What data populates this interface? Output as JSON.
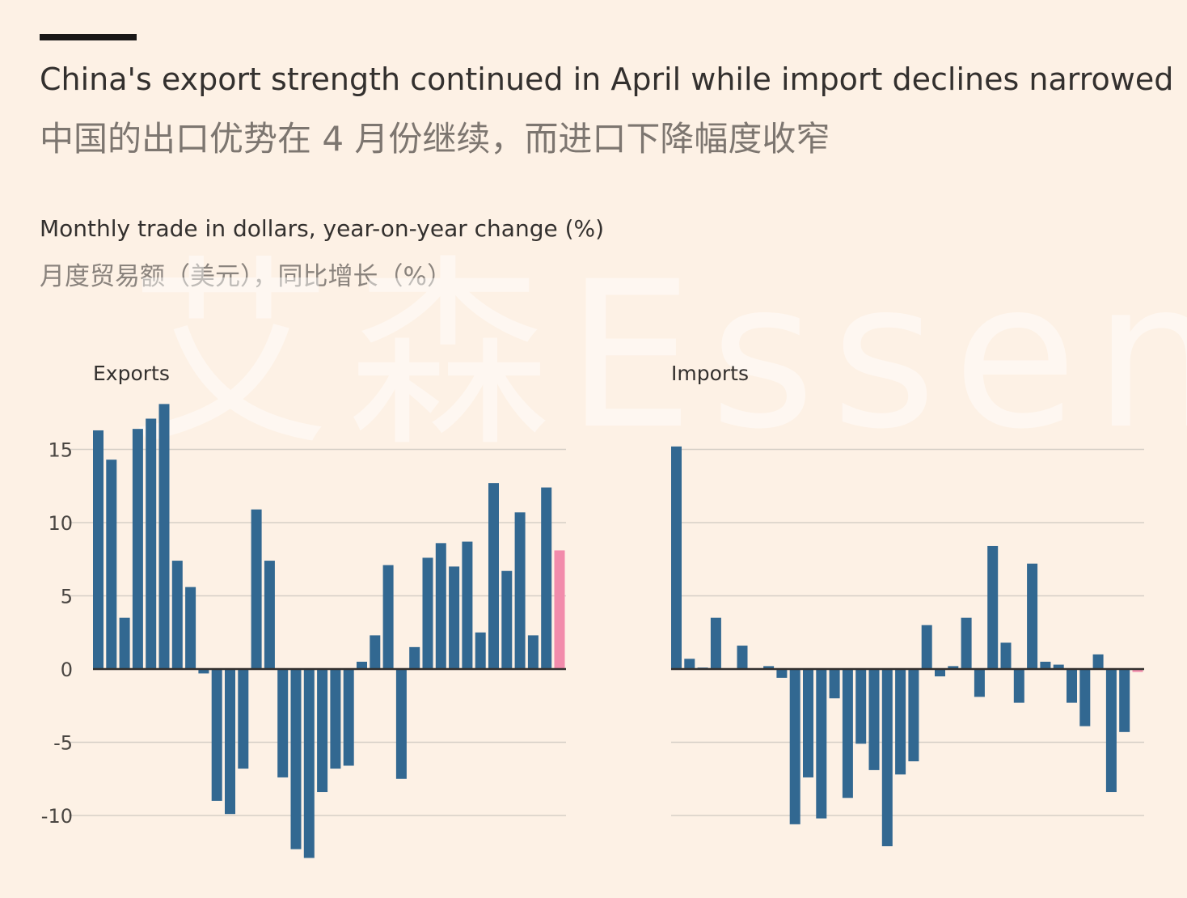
{
  "header": {
    "title": "China's export strength continued in April while import declines narrowed",
    "title_zh": "中国的出口优势在 4 月份继续，而进口下降幅度收窄",
    "subtitle": "Monthly trade in dollars, year-on-year change (%)",
    "subtitle_zh": "月度贸易额（美元），同比增长（%）",
    "watermark": "艾森Essen"
  },
  "colors": {
    "bar": "#326891",
    "highlight": "#f28bab",
    "grid": "#d6cfc6",
    "axis": "#33302e",
    "background": "#fdf1e5"
  },
  "chart_data": [
    {
      "type": "bar",
      "title": "Exports",
      "ylim": [
        -12,
        18
      ],
      "yticks": [
        15,
        10,
        5,
        0,
        -5,
        -10
      ],
      "grid": true,
      "highlight": "last",
      "values": [
        16.3,
        14.3,
        3.5,
        16.4,
        17.1,
        18.1,
        7.4,
        5.6,
        -0.3,
        -9.0,
        -9.9,
        -6.8,
        10.9,
        7.4,
        -7.4,
        -12.3,
        -12.9,
        -8.4,
        -6.8,
        -6.6,
        0.5,
        2.3,
        7.1,
        -7.5,
        1.5,
        7.6,
        8.6,
        7.0,
        8.7,
        2.5,
        12.7,
        6.7,
        10.7,
        2.3,
        12.4,
        8.1
      ]
    },
    {
      "type": "bar",
      "title": "Imports",
      "ylim": [
        -12,
        18
      ],
      "yticks": [
        15,
        10,
        5,
        0,
        -5,
        -10
      ],
      "grid": true,
      "highlight": "last",
      "values": [
        15.2,
        0.7,
        0.1,
        3.5,
        0.0,
        1.6,
        0.0,
        0.2,
        -0.6,
        -10.6,
        -7.4,
        -10.2,
        -2.0,
        -8.8,
        -5.1,
        -6.9,
        -12.1,
        -7.2,
        -6.3,
        3.0,
        -0.5,
        0.2,
        3.5,
        -1.9,
        8.4,
        1.8,
        -2.3,
        7.2,
        0.5,
        0.3,
        -2.3,
        -3.9,
        1.0,
        -8.4,
        -4.3,
        -0.2
      ]
    }
  ]
}
